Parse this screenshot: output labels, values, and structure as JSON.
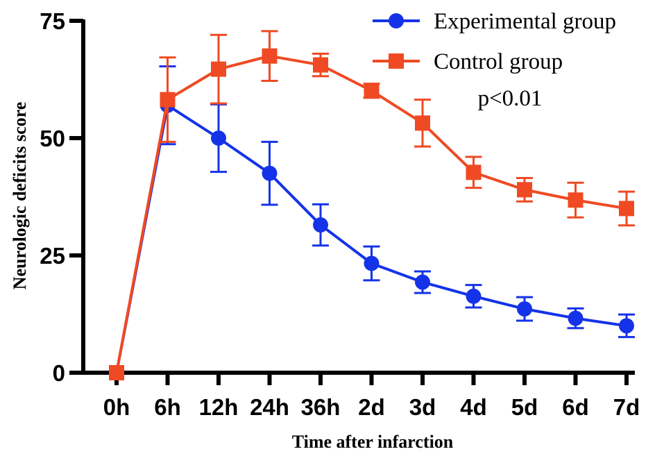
{
  "chart_data": {
    "type": "line",
    "title": "",
    "xlabel": "Time after infarction",
    "ylabel": "Neurologic deficits score",
    "categories": [
      "0h",
      "6h",
      "12h",
      "24h",
      "36h",
      "2d",
      "3d",
      "4d",
      "5d",
      "6d",
      "7d"
    ],
    "ylim": [
      0,
      75
    ],
    "yticks": [
      0,
      25,
      50,
      75
    ],
    "grid": false,
    "legend_position": "top-right",
    "annotation": "p<0.01",
    "series": [
      {
        "name": "Experimental group",
        "color": "#1433e8",
        "marker": "circle",
        "values": [
          0,
          57,
          50,
          42.5,
          31.5,
          23.3,
          19.3,
          16.3,
          13.6,
          11.6,
          10
        ],
        "errors": [
          0,
          8.3,
          7.2,
          6.7,
          4.4,
          3.6,
          2.3,
          2.4,
          2.5,
          2.1,
          2.4
        ]
      },
      {
        "name": "Control group",
        "color": "#ef4a23",
        "marker": "square",
        "values": [
          0,
          58.2,
          64.7,
          67.5,
          65.6,
          60.1,
          53.2,
          42.7,
          39,
          36.8,
          35
        ],
        "errors": [
          0,
          9,
          7.3,
          5.3,
          2.4,
          1.5,
          5,
          3.3,
          2.5,
          3.7,
          3.6
        ]
      }
    ]
  }
}
